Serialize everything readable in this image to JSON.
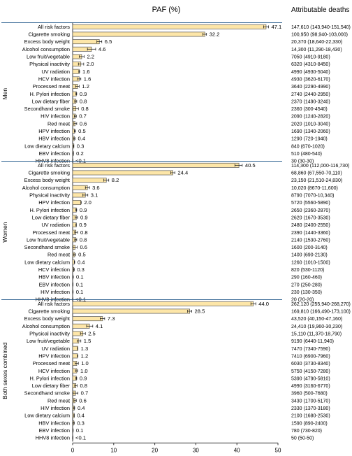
{
  "chart_data": {
    "type": "bar",
    "title": "PAF (%)",
    "right_header": "Attributable deaths",
    "xlabel": "",
    "ylabel": "",
    "xlim": [
      0,
      50
    ],
    "x_ticks": [
      "0",
      "10",
      "20",
      "30",
      "40",
      "50"
    ],
    "bar_color": "#fde6a8",
    "bar_stroke": "#555555",
    "panels": [
      {
        "name": "Men",
        "rows": [
          {
            "label": "All risk factors",
            "value": 47.1,
            "value_label": "47.1",
            "ci": [
              46.5,
              47.7
            ],
            "deaths": "147,610 (143,940-151,540)"
          },
          {
            "label": "Cigarette smoking",
            "value": 32.2,
            "value_label": "32.2",
            "ci": [
              31.7,
              32.6
            ],
            "deaths": "100,950 (98,940-103,000)"
          },
          {
            "label": "Excess body weight",
            "value": 6.5,
            "value_label": "6.5",
            "ci": [
              5.9,
              7.1
            ],
            "deaths": "20,370 (18,640-22,330)"
          },
          {
            "label": "Alcohol consumption",
            "value": 4.6,
            "value_label": "4.6",
            "ci": [
              3.6,
              5.6
            ],
            "deaths": "14,300 (11,290-18,430)"
          },
          {
            "label": "Low fruit/vegetable",
            "value": 2.2,
            "value_label": "2.2",
            "ci": [
              1.6,
              2.8
            ],
            "deaths": "7050 (4910-9180)"
          },
          {
            "label": "Physical inactivity",
            "value": 2.0,
            "value_label": "2.0",
            "ci": [
              1.4,
              2.7
            ],
            "deaths": "6320 (4310-8450)"
          },
          {
            "label": "UV radiation",
            "value": 1.6,
            "value_label": "1.6",
            "ci": [
              1.5,
              1.7
            ],
            "deaths": "4990 (4930-5040)"
          },
          {
            "label": "HCV infection",
            "value": 1.6,
            "value_label": "1.6",
            "ci": [
              1.2,
              2.0
            ],
            "deaths": "4930 (3620-6170)"
          },
          {
            "label": "Processed meat",
            "value": 1.2,
            "value_label": "1.2",
            "ci": [
              0.7,
              1.6
            ],
            "deaths": "3640 (2290-4990)"
          },
          {
            "label": "H. Pylori infection",
            "value": 0.9,
            "value_label": "0.9",
            "ci": [
              0.8,
              1.0
            ],
            "deaths": "2740 (2440-2950)"
          },
          {
            "label": "Low dietary fiber",
            "value": 0.8,
            "value_label": "0.8",
            "ci": [
              0.5,
              1.0
            ],
            "deaths": "2370 (1490-3240)"
          },
          {
            "label": "Secondhand smoke",
            "value": 0.8,
            "value_label": "0.8",
            "ci": [
              0.1,
              1.4
            ],
            "deaths": "2360 (300-4540)"
          },
          {
            "label": "HIV infection",
            "value": 0.7,
            "value_label": "0.7",
            "ci": [
              0.4,
              0.9
            ],
            "deaths": "2090 (1240-2820)"
          },
          {
            "label": "Red meat",
            "value": 0.6,
            "value_label": "0.6",
            "ci": [
              0.3,
              1.0
            ],
            "deaths": "2020 (1010-3040)"
          },
          {
            "label": "HPV infection",
            "value": 0.5,
            "value_label": "0.5",
            "ci": [
              0.4,
              0.7
            ],
            "deaths": "1690 (1340-2060)"
          },
          {
            "label": "HBV infection",
            "value": 0.4,
            "value_label": "0.4",
            "ci": [
              0.2,
              0.6
            ],
            "deaths": "1290 (720-1940)"
          },
          {
            "label": "Low dietary calcium",
            "value": 0.3,
            "value_label": "0.3",
            "ci": [
              0.2,
              0.3
            ],
            "deaths": "840 (670-1020)"
          },
          {
            "label": "EBV infection",
            "value": 0.2,
            "value_label": "0.2",
            "ci": [
              0.1,
              0.2
            ],
            "deaths": "510 (480-540)"
          },
          {
            "label": "HHV8 infection",
            "value": 0.01,
            "value_label": "<0.1",
            "ci": [
              0.01,
              0.01
            ],
            "deaths": "30 (30-30)"
          }
        ]
      },
      {
        "name": "Women",
        "rows": [
          {
            "label": "All risk factors",
            "value": 40.5,
            "value_label": "40.5",
            "ci": [
              39.5,
              41.3
            ],
            "deaths": "114,300 (112,000-116,730)"
          },
          {
            "label": "Cigarette smoking",
            "value": 24.4,
            "value_label": "24.4",
            "ci": [
              23.9,
              24.9
            ],
            "deaths": "68,860 (67,550-70,110)"
          },
          {
            "label": "Excess body weight",
            "value": 8.2,
            "value_label": "8.2",
            "ci": [
              7.6,
              8.8
            ],
            "deaths": "23,150 (21,510-24,830)"
          },
          {
            "label": "Alcohol consumption",
            "value": 3.6,
            "value_label": "3.6",
            "ci": [
              3.1,
              4.1
            ],
            "deaths": "10,020 (8670-11,600)"
          },
          {
            "label": "Physical inactivity",
            "value": 3.1,
            "value_label": "3.1",
            "ci": [
              2.5,
              3.7
            ],
            "deaths": "8790 (7070-10,340)"
          },
          {
            "label": "HPV infection",
            "value": 2.0,
            "value_label": "2.0",
            "ci": [
              2.0,
              2.1
            ],
            "deaths": "5720 (5560-5890)"
          },
          {
            "label": "H. Pylori infection",
            "value": 0.9,
            "value_label": "0.9",
            "ci": [
              0.8,
              1.0
            ],
            "deaths": "2650 (2360-2870)"
          },
          {
            "label": "Low dietary fiber",
            "value": 0.9,
            "value_label": "0.9",
            "ci": [
              0.6,
              1.2
            ],
            "deaths": "2620 (1670-3530)"
          },
          {
            "label": "UV radiation",
            "value": 0.9,
            "value_label": "0.9",
            "ci": [
              0.8,
              0.9
            ],
            "deaths": "2480 (2400-2550)"
          },
          {
            "label": "Processed meat",
            "value": 0.8,
            "value_label": "0.8",
            "ci": [
              0.5,
              1.2
            ],
            "deaths": "2390 (1440-3360)"
          },
          {
            "label": "Low fruit/vegetable",
            "value": 0.8,
            "value_label": "0.8",
            "ci": [
              0.5,
              1.0
            ],
            "deaths": "2140 (1530-2760)"
          },
          {
            "label": "Secondhand smoke",
            "value": 0.6,
            "value_label": "0.6",
            "ci": [
              0.1,
              1.1
            ],
            "deaths": "1600 (200-3140)"
          },
          {
            "label": "Red meat",
            "value": 0.5,
            "value_label": "0.5",
            "ci": [
              0.2,
              0.7
            ],
            "deaths": "1400 (690-2130)"
          },
          {
            "label": "Low dietary calcium",
            "value": 0.4,
            "value_label": "0.4",
            "ci": [
              0.4,
              0.5
            ],
            "deaths": "1260 (1010-1500)"
          },
          {
            "label": "HCV infection",
            "value": 0.3,
            "value_label": "0.3",
            "ci": [
              0.2,
              0.4
            ],
            "deaths": "820 (530-1120)"
          },
          {
            "label": "HBV infection",
            "value": 0.1,
            "value_label": "0.1",
            "ci": [
              0.06,
              0.17
            ],
            "deaths": "290 (160-460)"
          },
          {
            "label": "EBV infection",
            "value": 0.1,
            "value_label": "0.1",
            "ci": [
              0.09,
              0.1
            ],
            "deaths": "270 (250-280)"
          },
          {
            "label": "HIV infection",
            "value": 0.1,
            "value_label": "0.1",
            "ci": [
              0.05,
              0.12
            ],
            "deaths": "230 (130-350)"
          },
          {
            "label": "HHV8 infection",
            "value": 0.01,
            "value_label": "<0.1",
            "ci": [
              0.01,
              0.01
            ],
            "deaths": "20 (20-20)"
          }
        ]
      },
      {
        "name": "Both sexes combined",
        "rows": [
          {
            "label": "All risk factors",
            "value": 44.0,
            "value_label": "44.0",
            "ci": [
              43.4,
              44.6
            ],
            "deaths": "262,120 (255,940-268,270)"
          },
          {
            "label": "Cigarette smoking",
            "value": 28.5,
            "value_label": "28.5",
            "ci": [
              28.0,
              29.0
            ],
            "deaths": "169,810 (166,490-173,100)"
          },
          {
            "label": "Excess body weight",
            "value": 7.3,
            "value_label": "7.3",
            "ci": [
              6.7,
              7.8
            ],
            "deaths": "43,520 (40,150-47,160)"
          },
          {
            "label": "Alcohol consumption",
            "value": 4.1,
            "value_label": "4.1",
            "ci": [
              3.4,
              4.9
            ],
            "deaths": "24,410 (19,960-30,230)"
          },
          {
            "label": "Physical inactivity",
            "value": 2.5,
            "value_label": "2.5",
            "ci": [
              1.9,
              3.1
            ],
            "deaths": "15,110 (11,370-18,790)"
          },
          {
            "label": "Low fruit/vegetable",
            "value": 1.5,
            "value_label": "1.5",
            "ci": [
              1.1,
              2.0
            ],
            "deaths": "9190 (6440-11,940)"
          },
          {
            "label": "UV radiation",
            "value": 1.3,
            "value_label": "1.3",
            "ci": [
              1.2,
              1.3
            ],
            "deaths": "7470 (7340-7590)"
          },
          {
            "label": "HPV infection",
            "value": 1.2,
            "value_label": "1.2",
            "ci": [
              1.2,
              1.3
            ],
            "deaths": "7410 (6900-7960)"
          },
          {
            "label": "Processed meat",
            "value": 1.0,
            "value_label": "1.0",
            "ci": [
              0.6,
              1.4
            ],
            "deaths": "6030 (3730-8340)"
          },
          {
            "label": "HCV infection",
            "value": 1.0,
            "value_label": "1.0",
            "ci": [
              0.7,
              1.2
            ],
            "deaths": "5750 (4150-7280)"
          },
          {
            "label": "H. Pylori infection",
            "value": 0.9,
            "value_label": "0.9",
            "ci": [
              0.8,
              1.0
            ],
            "deaths": "5390 (4790-5810)"
          },
          {
            "label": "Low dietary fiber",
            "value": 0.8,
            "value_label": "0.8",
            "ci": [
              0.5,
              1.1
            ],
            "deaths": "4990 (3160-6770)"
          },
          {
            "label": "Secondhand smoke",
            "value": 0.7,
            "value_label": "0.7",
            "ci": [
              0.1,
              1.3
            ],
            "deaths": "3960 (500-7680)"
          },
          {
            "label": "Red meat",
            "value": 0.6,
            "value_label": "0.6",
            "ci": [
              0.3,
              0.9
            ],
            "deaths": "3430 (1700-5170)"
          },
          {
            "label": "HIV infection",
            "value": 0.4,
            "value_label": "0.4",
            "ci": [
              0.2,
              0.5
            ],
            "deaths": "2330 (1370-3180)"
          },
          {
            "label": "Low dietary calcium",
            "value": 0.4,
            "value_label": "0.4",
            "ci": [
              0.3,
              0.4
            ],
            "deaths": "2100 (1680-2530)"
          },
          {
            "label": "HBV infection",
            "value": 0.3,
            "value_label": "0.3",
            "ci": [
              0.1,
              0.4
            ],
            "deaths": "1590 (890-2400)"
          },
          {
            "label": "EBV infection",
            "value": 0.1,
            "value_label": "0.1",
            "ci": [
              0.12,
              0.14
            ],
            "deaths": "780 (730-820)"
          },
          {
            "label": "HHV8 infection",
            "value": 0.01,
            "value_label": "<0.1",
            "ci": [
              0.01,
              0.01
            ],
            "deaths": "50 (50-50)"
          }
        ]
      }
    ]
  }
}
